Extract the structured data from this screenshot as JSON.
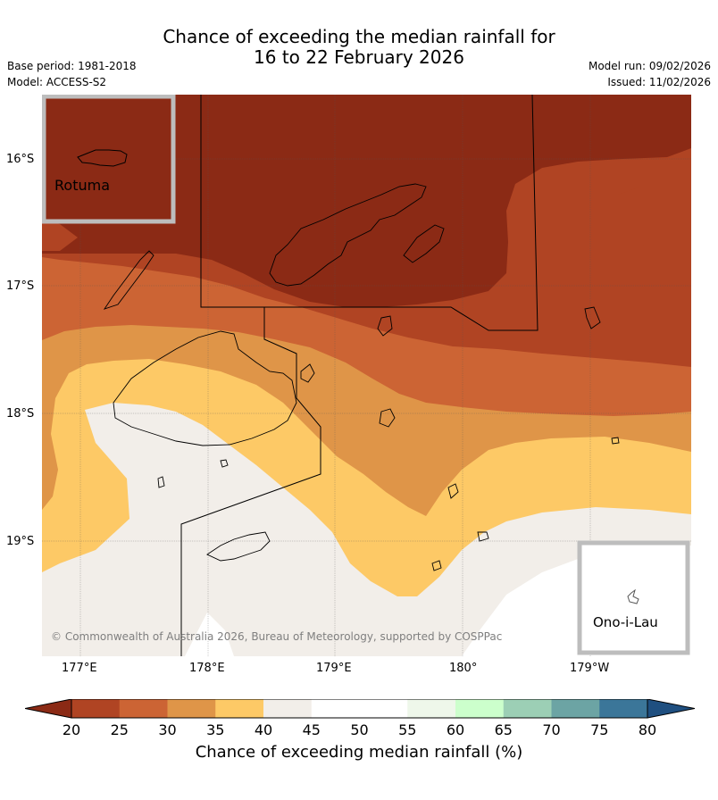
{
  "title": {
    "line1": "Chance of exceeding the median rainfall for",
    "line2": "16 to 22 February 2026"
  },
  "meta_left": {
    "base_period": "Base period: 1981-2018",
    "model": "Model: ACCESS-S2"
  },
  "meta_right": {
    "model_run": "Model run: 09/02/2026",
    "issued": "Issued: 11/02/2026"
  },
  "lat_labels": [
    "16°S",
    "17°S",
    "18°S",
    "19°S"
  ],
  "lon_labels": [
    "177°E",
    "178°E",
    "179°E",
    "180°",
    "179°W"
  ],
  "insets": {
    "rotuma": "Rotuma",
    "ono_i_lau": "Ono-i-Lau"
  },
  "copyright": "© Commonwealth of Australia 2026, Bureau of Meteorology, supported by COSPPac",
  "colorbar": {
    "ticks": [
      "20",
      "25",
      "30",
      "35",
      "40",
      "45",
      "50",
      "55",
      "60",
      "65",
      "70",
      "75",
      "80"
    ],
    "colors": [
      "#8b2a15",
      "#b04423",
      "#cc6434",
      "#df9548",
      "#fdc966",
      "#f2eee9",
      "#ffffff",
      "#ffffff",
      "#eef7ea",
      "#ccffcc",
      "#9ccfb5",
      "#6ca4a4",
      "#3b7699",
      "#1f4f80"
    ],
    "title": "Chance of exceeding median rainfall (%)"
  },
  "band_colors": {
    "b20": "#8b2a15",
    "b25": "#b04423",
    "b30": "#cc6434",
    "b35": "#df9548",
    "b40": "#fdc966",
    "b45": "#f2eee9",
    "b50": "#ffffff"
  }
}
